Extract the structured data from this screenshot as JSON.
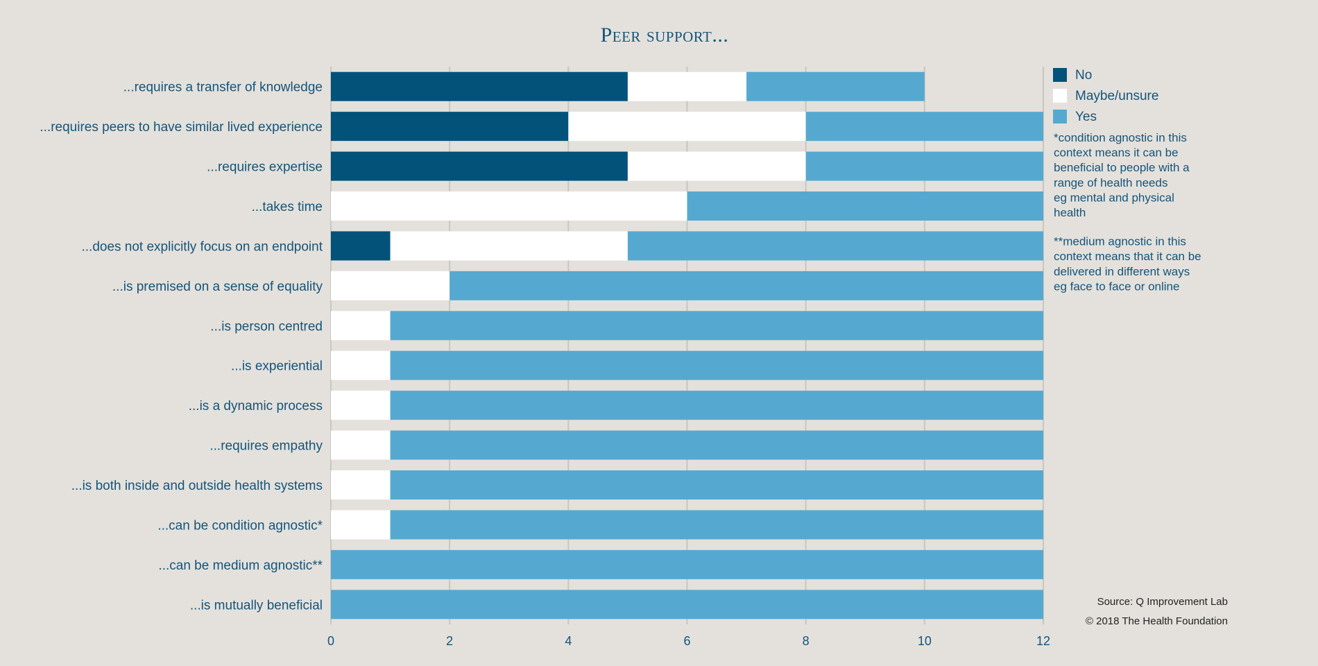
{
  "chart_data": {
    "type": "bar",
    "orientation": "horizontal",
    "stacked": true,
    "title": "Peer support...",
    "categories": [
      "...requires a transfer of knowledge",
      "...requires peers to have similar lived experience",
      "...requires expertise",
      "...takes time",
      "...does not explicitly focus on an endpoint",
      "...is premised on a sense of equality",
      "...is person centred",
      "...is experiential",
      "...is a dynamic process",
      "...requires empathy",
      "...is both inside and outside health systems",
      "...can be condition agnostic*",
      "...can be medium agnostic**",
      "...is mutually beneficial"
    ],
    "series": [
      {
        "name": "No",
        "color": "#02527a",
        "values": [
          5,
          4,
          5,
          0,
          1,
          0,
          0,
          0,
          0,
          0,
          0,
          0,
          0,
          0
        ]
      },
      {
        "name": "Maybe/unsure",
        "color": "#ffffff",
        "values": [
          2,
          4,
          3,
          6,
          4,
          2,
          1,
          1,
          1,
          1,
          1,
          1,
          0,
          0
        ]
      },
      {
        "name": "Yes",
        "color": "#55a9d0",
        "values": [
          3,
          4,
          4,
          6,
          7,
          10,
          11,
          11,
          11,
          11,
          11,
          11,
          12,
          12
        ]
      }
    ],
    "xlim": [
      0,
      12
    ],
    "xticks": [
      "0",
      "2",
      "4",
      "6",
      "8",
      "10",
      "12"
    ],
    "grid": true,
    "legend_position": "right",
    "notes": [
      [
        "*condition agnostic in this",
        "context means it can be",
        "beneficial to people with a",
        "range of health needs",
        "eg mental and physical",
        "health"
      ],
      [
        "**medium agnostic in this",
        "context means that it can be",
        "delivered in different ways",
        "eg face to face or online"
      ]
    ],
    "source": "Source: Q Improvement Lab",
    "copyright": "© 2018 The Health Foundation",
    "colors": {
      "background": "#e4e1dc",
      "grid": "#c9c5bf",
      "text": "#14547a"
    }
  }
}
